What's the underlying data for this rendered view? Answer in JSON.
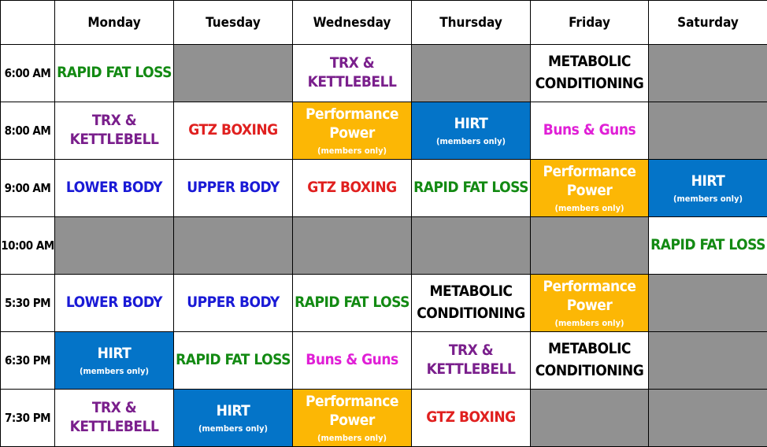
{
  "colors": {
    "empty": "#919191",
    "green": "#138a13",
    "purple": "#7a1f8c",
    "red": "#e0201f",
    "blue": "#1a1ad6",
    "magenta": "#e01fd6",
    "black": "#000000",
    "white": "#ffffff",
    "gold_bg": "#fcb705",
    "blue_bg": "#0474c8",
    "white_bg": "#ffffff"
  },
  "days": [
    "Monday",
    "Tuesday",
    "Wednesday",
    "Thursday",
    "Friday",
    "Saturday"
  ],
  "rows": [
    {
      "time": "6:00 AM",
      "cells": [
        {
          "type": "class",
          "title": "RAPID FAT LOSS",
          "color": "green"
        },
        {
          "type": "empty"
        },
        {
          "type": "class",
          "title": "TRX & KETTLEBELL",
          "color": "purple"
        },
        {
          "type": "empty"
        },
        {
          "type": "class",
          "lines": [
            "METABOLIC",
            "CONDITIONING"
          ],
          "color": "black"
        },
        {
          "type": "empty"
        }
      ]
    },
    {
      "time": "8:00 AM",
      "cells": [
        {
          "type": "class",
          "title": "TRX & KETTLEBELL",
          "color": "purple"
        },
        {
          "type": "class",
          "title": "GTZ BOXING",
          "color": "red"
        },
        {
          "type": "class",
          "title": "Performance Power",
          "sub": "(members only)",
          "color": "white",
          "bg": "gold_bg"
        },
        {
          "type": "class",
          "title": "HIRT",
          "sub": "(members only)",
          "color": "white",
          "bg": "blue_bg"
        },
        {
          "type": "class",
          "title": "Buns & Guns",
          "color": "magenta"
        },
        {
          "type": "empty"
        }
      ]
    },
    {
      "time": "9:00 AM",
      "cells": [
        {
          "type": "class",
          "title": "LOWER BODY",
          "color": "blue"
        },
        {
          "type": "class",
          "title": "UPPER BODY",
          "color": "blue"
        },
        {
          "type": "class",
          "title": "GTZ BOXING",
          "color": "red"
        },
        {
          "type": "class",
          "title": "RAPID FAT LOSS",
          "color": "green"
        },
        {
          "type": "class",
          "title": "Performance Power",
          "sub": "(members only)",
          "color": "white",
          "bg": "gold_bg"
        },
        {
          "type": "class",
          "title": "HIRT",
          "sub": "(members only)",
          "color": "white",
          "bg": "blue_bg"
        }
      ]
    },
    {
      "time": "10:00 AM",
      "cells": [
        {
          "type": "empty"
        },
        {
          "type": "empty"
        },
        {
          "type": "empty"
        },
        {
          "type": "empty"
        },
        {
          "type": "empty"
        },
        {
          "type": "class",
          "title": "RAPID FAT LOSS",
          "color": "green"
        }
      ]
    },
    {
      "time": "5:30 PM",
      "cells": [
        {
          "type": "class",
          "title": "LOWER BODY",
          "color": "blue"
        },
        {
          "type": "class",
          "title": "UPPER BODY",
          "color": "blue"
        },
        {
          "type": "class",
          "title": "RAPID FAT LOSS",
          "color": "green"
        },
        {
          "type": "class",
          "lines": [
            "METABOLIC",
            "CONDITIONING"
          ],
          "color": "black"
        },
        {
          "type": "class",
          "title": "Performance Power",
          "sub": "(members only)",
          "color": "white",
          "bg": "gold_bg"
        },
        {
          "type": "empty"
        }
      ]
    },
    {
      "time": "6:30 PM",
      "cells": [
        {
          "type": "class",
          "title": "HIRT",
          "sub": "(members only)",
          "color": "white",
          "bg": "blue_bg"
        },
        {
          "type": "class",
          "title": "RAPID FAT LOSS",
          "color": "green"
        },
        {
          "type": "class",
          "title": "Buns & Guns",
          "color": "magenta"
        },
        {
          "type": "class",
          "title": "TRX & KETTLEBELL",
          "color": "purple"
        },
        {
          "type": "class",
          "lines": [
            "METABOLIC",
            "CONDITIONING"
          ],
          "color": "black"
        },
        {
          "type": "empty"
        }
      ]
    },
    {
      "time": "7:30 PM",
      "cells": [
        {
          "type": "class",
          "title": "TRX & KETTLEBELL",
          "color": "purple"
        },
        {
          "type": "class",
          "title": "HIRT",
          "sub": "(members only)",
          "color": "white",
          "bg": "blue_bg"
        },
        {
          "type": "class",
          "title": "Performance Power",
          "sub": "(members only)",
          "color": "white",
          "bg": "gold_bg"
        },
        {
          "type": "class",
          "title": "GTZ BOXING",
          "color": "red"
        },
        {
          "type": "empty"
        },
        {
          "type": "empty"
        }
      ]
    }
  ]
}
